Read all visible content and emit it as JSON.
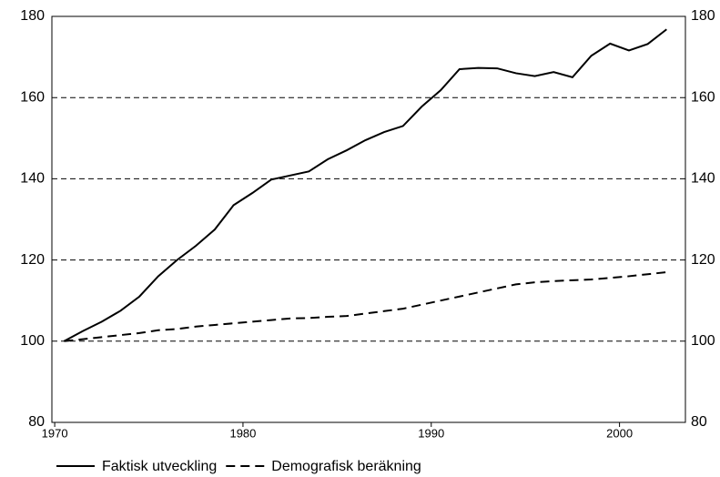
{
  "chart_data": {
    "type": "line",
    "x": [
      1970.5,
      1971.5,
      1972.5,
      1973.5,
      1974.5,
      1975.5,
      1976.5,
      1977.5,
      1978.5,
      1979.5,
      1980.5,
      1981.5,
      1982.5,
      1983.5,
      1984.5,
      1985.5,
      1986.5,
      1987.5,
      1988.5,
      1989.5,
      1990.5,
      1991.5,
      1992.5,
      1993.5,
      1994.5,
      1995.5,
      1996.5,
      1997.5,
      1998.5,
      1999.5,
      2000.5,
      2001.5,
      2002.5
    ],
    "series": [
      {
        "name": "Faktisk utveckling",
        "color": "#000000",
        "dash": false,
        "values": [
          100,
          102.5,
          104.8,
          107.5,
          111,
          116,
          120,
          123.5,
          127.5,
          133.5,
          136.5,
          139.8,
          140.8,
          141.8,
          144.8,
          147,
          149.5,
          151.5,
          153,
          157.8,
          161.8,
          167,
          167.3,
          167.2,
          166,
          165.3,
          166.3,
          165,
          170.3,
          173.3,
          171.6,
          173.2,
          176.8
        ]
      },
      {
        "name": "Demografisk beräkning",
        "color": "#000000",
        "dash": true,
        "values": [
          100,
          100.5,
          101,
          101.5,
          102,
          102.7,
          103,
          103.6,
          104,
          104.4,
          104.8,
          105.2,
          105.6,
          105.7,
          106,
          106.2,
          106.8,
          107.4,
          108,
          109,
          110,
          111,
          112,
          113,
          114,
          114.5,
          114.8,
          115,
          115.2,
          115.6,
          116,
          116.5,
          117
        ]
      }
    ],
    "xlim": [
      1969.85,
      2003.5
    ],
    "xticks": [
      1970,
      1980,
      1990,
      2000
    ],
    "ylim": [
      80,
      180
    ],
    "yticks": [
      80,
      100,
      120,
      140,
      160,
      180
    ],
    "y2lim": [
      80,
      180
    ],
    "y2ticks": [
      80,
      100,
      120,
      140,
      160,
      180
    ],
    "grid": true,
    "legend": "bottom"
  }
}
